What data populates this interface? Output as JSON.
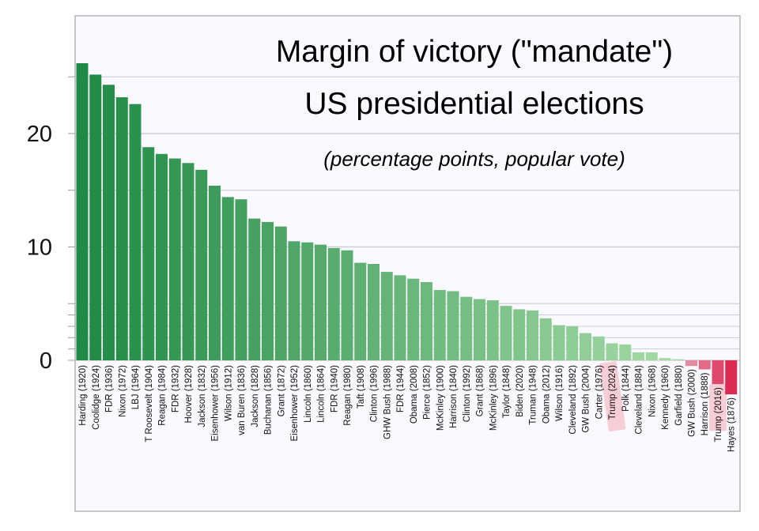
{
  "chart_data": {
    "type": "bar",
    "title": "Margin of victory (\"mandate\")",
    "subtitle": "US presidential elections",
    "note": "(percentage points, popular vote)",
    "ylim": [
      -3,
      27
    ],
    "yticks": [
      0,
      10,
      20
    ],
    "ytick_labels": [
      "0",
      "10",
      "20"
    ],
    "minor_gridlines": [
      1,
      2,
      3,
      4,
      5
    ],
    "grid": true,
    "highlighted": [
      "Trump (2024)",
      "Trump (2016)"
    ],
    "colors": {
      "positive_strong": "#1f8a45",
      "positive_light": "#a6dba6",
      "negative_light": "#e48aa0",
      "negative_strong": "#dd2a52",
      "highlight": "#f7c6cf",
      "plot_background": "#f9f9ff",
      "grid": "#c8c8d2"
    },
    "categories": [
      "Harding (1920)",
      "Coolidge (1924)",
      "FDR (1936)",
      "Nixon (1972)",
      "LBJ (1964)",
      "T Roosevelt (1904)",
      "Reagan (1984)",
      "FDR (1932)",
      "Hoover (1928)",
      "Jackson (1832)",
      "Eisenhower (1956)",
      "Wilson (1912)",
      "van Buren (1836)",
      "Jackson (1828)",
      "Buchanan (1856)",
      "Grant (1872)",
      "Eisenhower (1952)",
      "Lincoln (1860)",
      "Lincoln (1864)",
      "FDR (1940)",
      "Reagan (1980)",
      "Taft (1908)",
      "Clinton (1996)",
      "GHW Bush (1988)",
      "FDR (1944)",
      "Obama (2008)",
      "Pierce (1852)",
      "McKinley (1900)",
      "Harrison (1840)",
      "Clinton (1992)",
      "Grant (1868)",
      "McKinley (1896)",
      "Taylor (1848)",
      "Biden (2020)",
      "Truman (1948)",
      "Obama (2012)",
      "Wilson (1916)",
      "Cleveland (1892)",
      "GW Bush (2004)",
      "Carter (1976)",
      "Trump (2024)",
      "Polk (1844)",
      "Cleveland (1884)",
      "Nixon (1968)",
      "Kennedy (1960)",
      "Garfield (1880)",
      "GW Bush (2000)",
      "Harrison (1888)",
      "Trump (2016)",
      "Hayes (1876)"
    ],
    "values": [
      26.2,
      25.2,
      24.3,
      23.2,
      22.6,
      18.8,
      18.2,
      17.8,
      17.4,
      16.8,
      15.4,
      14.4,
      14.2,
      12.5,
      12.2,
      11.8,
      10.5,
      10.4,
      10.2,
      9.9,
      9.7,
      8.6,
      8.5,
      7.8,
      7.5,
      7.2,
      6.9,
      6.2,
      6.1,
      5.6,
      5.4,
      5.3,
      4.8,
      4.5,
      4.4,
      3.7,
      3.1,
      3.0,
      2.4,
      2.1,
      1.5,
      1.4,
      0.7,
      0.7,
      0.2,
      0.1,
      -0.5,
      -0.8,
      -2.1,
      -3.0
    ]
  }
}
